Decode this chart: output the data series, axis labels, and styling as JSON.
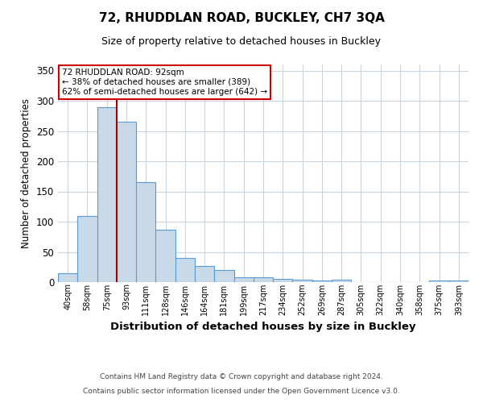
{
  "title": "72, RHUDDLAN ROAD, BUCKLEY, CH7 3QA",
  "subtitle": "Size of property relative to detached houses in Buckley",
  "xlabel": "Distribution of detached houses by size in Buckley",
  "ylabel": "Number of detached properties",
  "footnote1": "Contains HM Land Registry data © Crown copyright and database right 2024.",
  "footnote2": "Contains public sector information licensed under the Open Government Licence v3.0.",
  "categories": [
    "40sqm",
    "58sqm",
    "75sqm",
    "93sqm",
    "111sqm",
    "128sqm",
    "146sqm",
    "164sqm",
    "181sqm",
    "199sqm",
    "217sqm",
    "234sqm",
    "252sqm",
    "269sqm",
    "287sqm",
    "305sqm",
    "322sqm",
    "340sqm",
    "358sqm",
    "375sqm",
    "393sqm"
  ],
  "values": [
    15,
    110,
    290,
    265,
    165,
    87,
    40,
    27,
    20,
    8,
    8,
    5,
    4,
    3,
    4,
    0,
    0,
    0,
    0,
    3,
    3
  ],
  "bar_color": "#c8d9e8",
  "bar_edge_color": "#5b9bd5",
  "property_line_color": "#a00000",
  "red_line_x": 2.5,
  "annotation_text": "72 RHUDDLAN ROAD: 92sqm\n← 38% of detached houses are smaller (389)\n62% of semi-detached houses are larger (642) →",
  "annotation_box_color": "white",
  "annotation_box_edge_color": "#cc0000",
  "ylim": [
    0,
    360
  ],
  "yticks": [
    0,
    50,
    100,
    150,
    200,
    250,
    300,
    350
  ],
  "bg_color": "white",
  "grid_color": "#c8d4de"
}
